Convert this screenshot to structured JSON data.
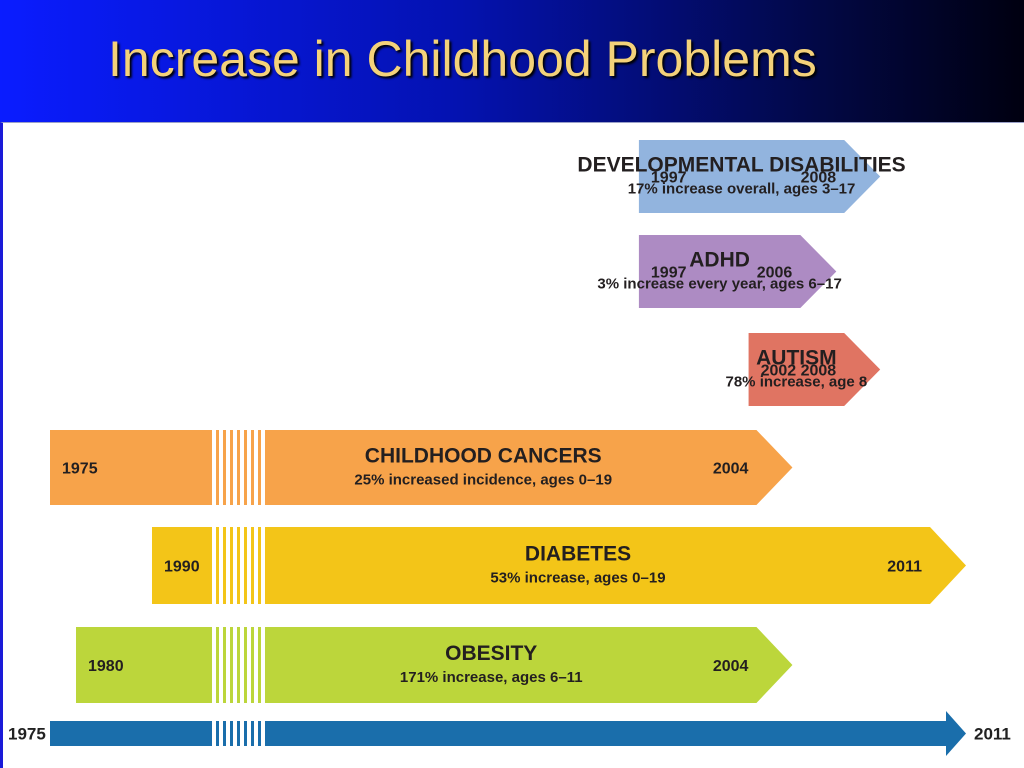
{
  "slide": {
    "title": "Increase in Childhood Problems"
  },
  "chart_data": {
    "type": "timeline",
    "title": "Increase in Childhood Problems",
    "axis": {
      "start": 1975,
      "end": 2011,
      "start_label": "1975",
      "end_label": "2011"
    },
    "series": [
      {
        "name": "DEVELOPMENTAL DISABILITIES",
        "description": "17% increase overall, ages 3–17",
        "start": 1997,
        "end": 2008,
        "start_label": "1997",
        "end_label": "2008",
        "color": "#92b4de",
        "broken": false
      },
      {
        "name": "ADHD",
        "description": "3% increase every year, ages 6–17",
        "start": 1997,
        "end": 2006,
        "start_label": "1997",
        "end_label": "2006",
        "color": "#ad8bc3",
        "broken": false
      },
      {
        "name": "AUTISM",
        "description": "78% increase, age 8",
        "start": 2002,
        "end": 2008,
        "start_label": "2002",
        "end_label": "2008",
        "color": "#e07462",
        "broken": false
      },
      {
        "name": "CHILDHOOD CANCERS",
        "description": "25% increased incidence, ages 0–19",
        "start": 1975,
        "end": 2004,
        "start_label": "1975",
        "end_label": "2004",
        "color": "#f7a34a",
        "broken": true
      },
      {
        "name": "DIABETES",
        "description": "53% increase, ages 0–19",
        "start": 1990,
        "end": 2011,
        "start_label": "1990",
        "end_label": "2011",
        "color": "#f3c518",
        "broken": true
      },
      {
        "name": "OBESITY",
        "description": "171% increase, ages 6–11",
        "start": 1980,
        "end": 2004,
        "start_label": "1980",
        "end_label": "2004",
        "color": "#bcd63b",
        "broken": true
      }
    ],
    "axis_color": "#1a6eab"
  }
}
